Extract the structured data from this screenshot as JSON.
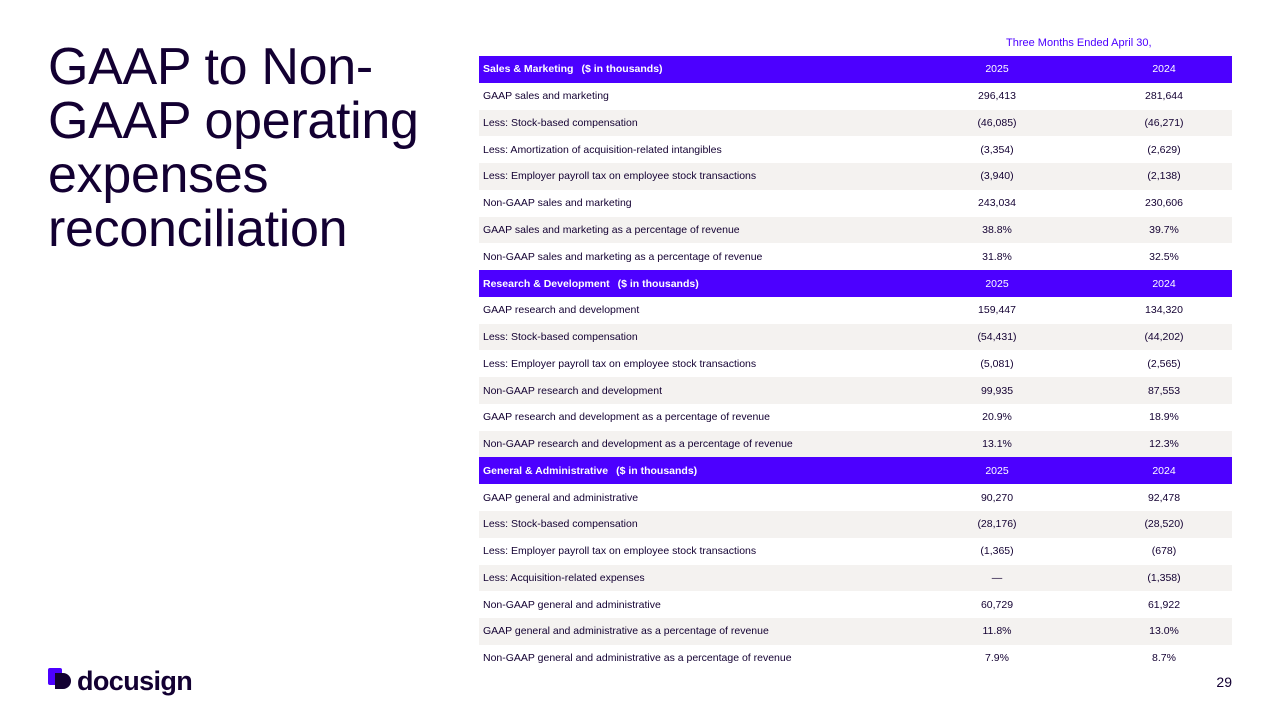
{
  "slide": {
    "title": "GAAP to Non-GAAP operating expenses reconciliation",
    "page_number": "29",
    "period_header": "Three Months Ended April 30,"
  },
  "brand": {
    "logo_text": "docusign",
    "logo_icon": "docusign-logo-icon",
    "colors": {
      "accent": "#4c00ff",
      "text": "#130032",
      "row_alt": "#f4f2f0",
      "logo_dark": "#130032"
    }
  },
  "sections": [
    {
      "name": "Sales & Marketing",
      "unit": "($ in thousands)",
      "year_a": "2025",
      "year_b": "2024",
      "rows": [
        {
          "label": "GAAP sales and marketing",
          "v2025": "296,413",
          "v2024": "281,644"
        },
        {
          "label": "Less: Stock-based compensation",
          "v2025": "(46,085)",
          "v2024": "(46,271)"
        },
        {
          "label": "Less: Amortization of acquisition-related intangibles",
          "v2025": "(3,354)",
          "v2024": "(2,629)"
        },
        {
          "label": "Less: Employer payroll tax on employee stock transactions",
          "v2025": "(3,940)",
          "v2024": "(2,138)"
        },
        {
          "label": "Non-GAAP sales and marketing",
          "v2025": "243,034",
          "v2024": "230,606"
        },
        {
          "label": "GAAP sales and marketing as a percentage of revenue",
          "v2025": "38.8%",
          "v2024": "39.7%"
        },
        {
          "label": "Non-GAAP sales and marketing as a percentage of revenue",
          "v2025": "31.8%",
          "v2024": "32.5%"
        }
      ]
    },
    {
      "name": "Research & Development",
      "unit": "($ in thousands)",
      "year_a": "2025",
      "year_b": "2024",
      "rows": [
        {
          "label": "GAAP research and development",
          "v2025": "159,447",
          "v2024": "134,320"
        },
        {
          "label": "Less: Stock-based compensation",
          "v2025": "(54,431)",
          "v2024": "(44,202)"
        },
        {
          "label": "Less: Employer payroll tax on employee stock transactions",
          "v2025": "(5,081)",
          "v2024": "(2,565)"
        },
        {
          "label": "Non-GAAP research and development",
          "v2025": "99,935",
          "v2024": "87,553"
        },
        {
          "label": "GAAP research and development as a percentage of revenue",
          "v2025": "20.9%",
          "v2024": "18.9%"
        },
        {
          "label": "Non-GAAP research and development as a percentage of revenue",
          "v2025": "13.1%",
          "v2024": "12.3%"
        }
      ]
    },
    {
      "name": "General & Administrative",
      "unit": "($ in thousands)",
      "year_a": "2025",
      "year_b": "2024",
      "rows": [
        {
          "label": "GAAP general and administrative",
          "v2025": "90,270",
          "v2024": "92,478"
        },
        {
          "label": "Less: Stock-based compensation",
          "v2025": "(28,176)",
          "v2024": "(28,520)"
        },
        {
          "label": "Less: Employer payroll tax on employee stock transactions",
          "v2025": "(1,365)",
          "v2024": "(678)"
        },
        {
          "label": "Less: Acquisition-related expenses",
          "v2025": "—",
          "v2024": "(1,358)"
        },
        {
          "label": "Non-GAAP general and administrative",
          "v2025": "60,729",
          "v2024": "61,922"
        },
        {
          "label": "GAAP general and administrative as a percentage of revenue",
          "v2025": "11.8%",
          "v2024": "13.0%"
        },
        {
          "label": "Non-GAAP general and administrative as a percentage of revenue",
          "v2025": "7.9%",
          "v2024": "8.7%"
        }
      ]
    }
  ]
}
